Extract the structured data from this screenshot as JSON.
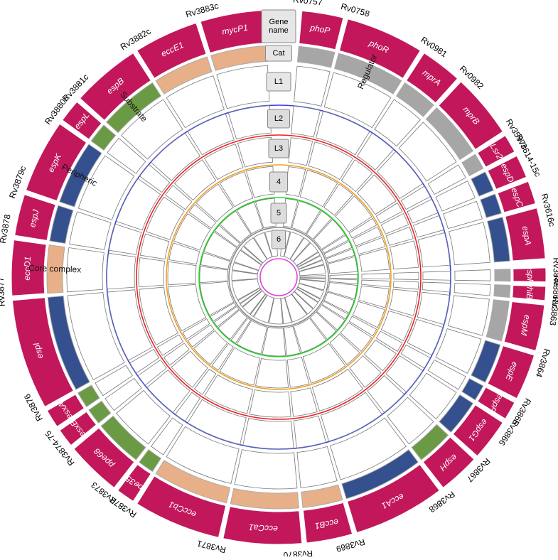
{
  "legend": [
    "Gene name",
    "Cat",
    "L1",
    "L2",
    "L3",
    "4",
    "5",
    "6"
  ],
  "category_labels": [
    "Regulator",
    "Peripheric",
    "Substrate",
    "Core complex"
  ],
  "genes": [
    {
      "locus": "Rv0757",
      "name": "phoP",
      "cat_color": "#a6a6a6"
    },
    {
      "locus": "Rv0758",
      "name": "phoR",
      "cat_color": "#a6a6a6"
    },
    {
      "locus": "Rv0981",
      "name": "mprA",
      "cat_color": "#a6a6a6"
    },
    {
      "locus": "Rv0982",
      "name": "mprB",
      "cat_color": "#a6a6a6"
    },
    {
      "locus": "Rv3597c",
      "name": "Lsr2",
      "cat_color": "#a6a6a6"
    },
    {
      "locus": "Rv3614-15c",
      "name": "espD",
      "cat_color": "#34508f"
    },
    {
      "locus": null,
      "name": "espC",
      "cat_color": "#34508f"
    },
    {
      "locus": "Rv3616c",
      "name": "espA",
      "cat_color": "#34508f"
    },
    {
      "locus": "Rv3849",
      "name": "espR",
      "cat_color": "#a6a6a6"
    },
    {
      "locus": "Rv3862c",
      "name": "whiB6",
      "cat_color": "#a6a6a6"
    },
    {
      "locus": "Rv3863",
      "name": "espM",
      "cat_color": "#a6a6a6"
    },
    {
      "locus": "Rv3864",
      "name": "espE",
      "cat_color": "#34508f"
    },
    {
      "locus": "Rv3865",
      "name": "espF",
      "cat_color": "#34508f"
    },
    {
      "locus": "Rv3866",
      "name": "espG1",
      "cat_color": "#34508f"
    },
    {
      "locus": "Rv3867",
      "name": "espH",
      "cat_color": "#6b9a45"
    },
    {
      "locus": "Rv3868",
      "name": "eccA1",
      "cat_color": "#34508f"
    },
    {
      "locus": "Rv3869",
      "name": "eccB1",
      "cat_color": "#e8b088"
    },
    {
      "locus": "Rv3870",
      "name": "eccCa1",
      "cat_color": "#e8b088"
    },
    {
      "locus": "Rv3871",
      "name": "eccCb1",
      "cat_color": "#e8b088"
    },
    {
      "locus": "Rv3872",
      "name": "pe35",
      "cat_color": "#6b9a45"
    },
    {
      "locus": "Rv3873",
      "name": "ppe68",
      "cat_color": "#6b9a45"
    },
    {
      "locus": "Rv3874-75",
      "name": "esxB",
      "cat_color": "#6b9a45"
    },
    {
      "locus": null,
      "name": "esxA",
      "cat_color": "#6b9a45"
    },
    {
      "locus": "Rv3876",
      "name": "espI",
      "cat_color": "#34508f"
    },
    {
      "locus": "Rv3877",
      "name": "eccD1",
      "cat_color": "#e8b088"
    },
    {
      "locus": "Rv3878",
      "name": "espJ",
      "cat_color": "#34508f"
    },
    {
      "locus": "Rv3879c",
      "name": "espK",
      "cat_color": "#34508f"
    },
    {
      "locus": "Rv3880c",
      "name": "espL",
      "cat_color": "#6b9a45"
    },
    {
      "locus": "Rv3881c",
      "name": "espB",
      "cat_color": "#6b9a45"
    },
    {
      "locus": "Rv3882c",
      "name": "eccE1",
      "cat_color": "#e8b088"
    },
    {
      "locus": "Rv3883c",
      "name": "mycP1",
      "cat_color": "#e8b088"
    }
  ]
}
